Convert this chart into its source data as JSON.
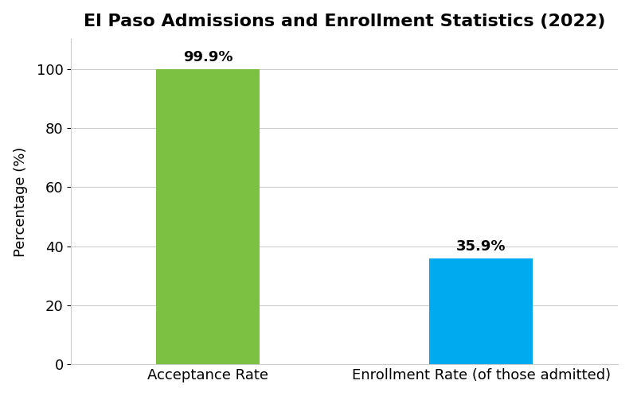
{
  "title": "El Paso Admissions and Enrollment Statistics (2022)",
  "categories": [
    "Acceptance Rate",
    "Enrollment Rate (of those admitted)"
  ],
  "values": [
    99.9,
    35.9
  ],
  "labels": [
    "99.9%",
    "35.9%"
  ],
  "bar_colors": [
    "#7dc142",
    "#00aaee"
  ],
  "ylabel": "Percentage (%)",
  "ylim": [
    0,
    110
  ],
  "yticks": [
    0,
    20,
    40,
    60,
    80,
    100
  ],
  "title_fontsize": 16,
  "label_fontsize": 13,
  "tick_fontsize": 13,
  "annotation_fontsize": 13,
  "bar_width": 0.38,
  "background_color": "#ffffff",
  "grid_color": "#cccccc"
}
